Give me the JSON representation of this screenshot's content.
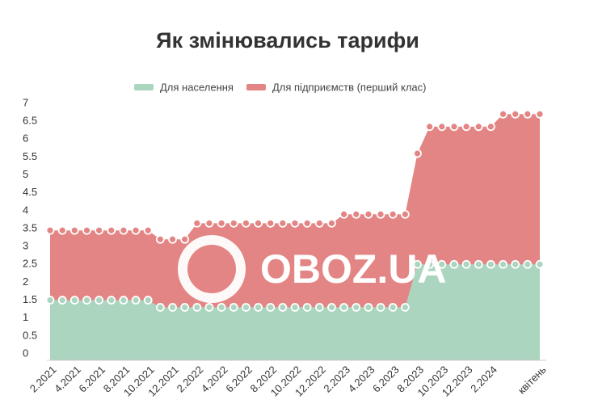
{
  "chart_data": {
    "type": "area",
    "title": "Як змінювались тарифи",
    "watermark": "OBOZ.UA",
    "categories": [
      "2.2021",
      null,
      "4.2021",
      null,
      "6.2021",
      null,
      "8.2021",
      null,
      "10.2021",
      null,
      "12.2021",
      null,
      "2.2022",
      null,
      "4.2022",
      null,
      "6.2022",
      null,
      "8.2022",
      null,
      "10.2022",
      null,
      "12.2022",
      null,
      "2.2023",
      null,
      "4.2023",
      null,
      "6.2023",
      null,
      "8.2023",
      null,
      "10.2023",
      null,
      "12.2023",
      null,
      "2.2024",
      null,
      null,
      null,
      "квітень"
    ],
    "series": [
      {
        "name": "Для підприємств (перший клас)",
        "color": "#e38584",
        "values": [
          3.45,
          3.45,
          3.45,
          3.45,
          3.45,
          3.45,
          3.45,
          3.45,
          3.45,
          3.2,
          3.2,
          3.2,
          3.65,
          3.65,
          3.65,
          3.65,
          3.65,
          3.65,
          3.65,
          3.65,
          3.65,
          3.65,
          3.65,
          3.65,
          3.9,
          3.9,
          3.9,
          3.9,
          3.9,
          3.9,
          5.6,
          6.35,
          6.35,
          6.35,
          6.35,
          6.35,
          6.35,
          6.7,
          6.7,
          6.7,
          6.7
        ]
      },
      {
        "name": "Для населення",
        "color": "#abd5bf",
        "values": [
          1.5,
          1.5,
          1.5,
          1.5,
          1.5,
          1.5,
          1.5,
          1.5,
          1.5,
          1.3,
          1.3,
          1.3,
          1.3,
          1.3,
          1.3,
          1.3,
          1.3,
          1.3,
          1.3,
          1.3,
          1.3,
          1.3,
          1.3,
          1.3,
          1.3,
          1.3,
          1.3,
          1.3,
          1.3,
          1.3,
          2.5,
          2.5,
          2.5,
          2.5,
          2.5,
          2.5,
          2.5,
          2.5,
          2.5,
          2.5,
          2.5
        ]
      }
    ],
    "legend": "top",
    "ylim": [
      0,
      7
    ],
    "yticks": [
      0,
      0.5,
      1,
      1.5,
      2,
      2.5,
      3,
      3.5,
      4,
      4.5,
      5,
      5.5,
      6,
      6.5,
      7
    ]
  }
}
